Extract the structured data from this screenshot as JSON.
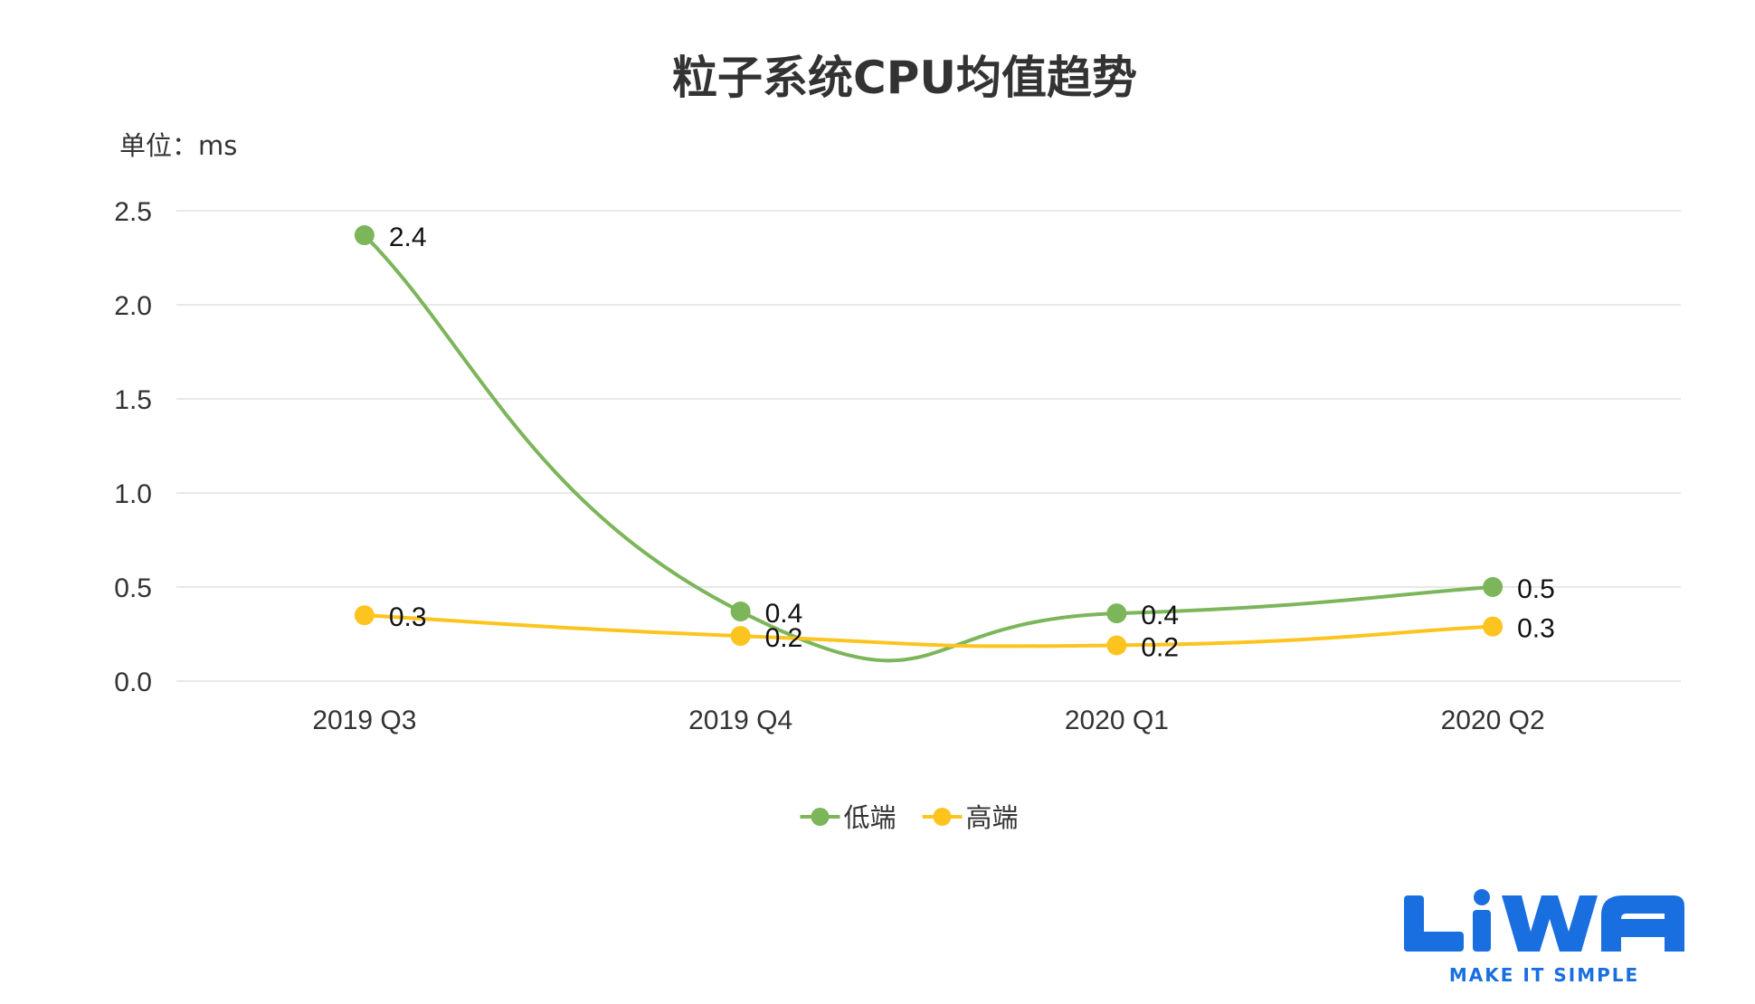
{
  "chart_data": {
    "type": "line",
    "title": "粒子系统CPU均值趋势",
    "unit_label": "单位：ms",
    "categories": [
      "2019 Q3",
      "2019 Q4",
      "2020 Q1",
      "2020 Q2"
    ],
    "ylim": [
      0,
      2.5
    ],
    "yticks": [
      "0.0",
      "0.5",
      "1.0",
      "1.5",
      "2.0",
      "2.5"
    ],
    "grid": true,
    "legend_position": "bottom-center",
    "series": [
      {
        "name": "低端",
        "color": "#7cb55a",
        "values": [
          2.37,
          0.37,
          0.36,
          0.5
        ],
        "labels": [
          "2.4",
          "0.4",
          "0.4",
          "0.5"
        ]
      },
      {
        "name": "高端",
        "color": "#fdc420",
        "values": [
          0.35,
          0.24,
          0.19,
          0.29
        ],
        "labels": [
          "0.3",
          "0.2",
          "0.2",
          "0.3"
        ]
      }
    ]
  },
  "logo": {
    "text": "LiWA",
    "tagline": "MAKE IT SIMPLE",
    "color": "#1a6fe0"
  }
}
